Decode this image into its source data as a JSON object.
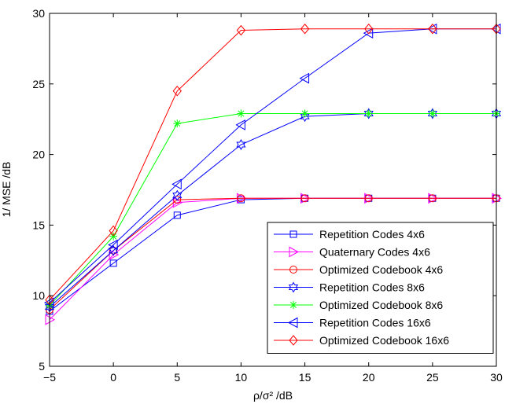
{
  "chart_data": {
    "type": "line",
    "xlabel": "ρ/σ² /dB",
    "ylabel": "1/ MSE /dB",
    "xlim": [
      -5,
      30
    ],
    "ylim": [
      5,
      30
    ],
    "xticks": [
      -5,
      0,
      5,
      10,
      15,
      20,
      25,
      30
    ],
    "yticks": [
      5,
      10,
      15,
      20,
      25,
      30
    ],
    "grid": false,
    "legend_position": "bottom-right",
    "x": [
      -5,
      0,
      5,
      10,
      15,
      20,
      25,
      30
    ],
    "series": [
      {
        "name": "Repetition Codes 4x6",
        "color": "#0000ff",
        "marker": "square",
        "values": [
          8.9,
          12.3,
          15.7,
          16.8,
          16.9,
          16.9,
          16.9,
          16.9
        ]
      },
      {
        "name": "Quaternary Codes 4x6",
        "color": "#ff00ff",
        "marker": "triangle-right",
        "values": [
          8.3,
          12.9,
          16.6,
          16.9,
          16.9,
          16.9,
          16.9,
          16.9
        ]
      },
      {
        "name": "Optimized Codebook 4x6",
        "color": "#ff0000",
        "marker": "circle",
        "values": [
          9.0,
          13.2,
          16.8,
          16.9,
          16.9,
          16.9,
          16.9,
          16.9
        ]
      },
      {
        "name": "Repetition Codes 8x6",
        "color": "#0000ff",
        "marker": "hexagram",
        "values": [
          9.2,
          13.2,
          17.1,
          20.7,
          22.7,
          22.9,
          22.9,
          22.9
        ]
      },
      {
        "name": "Optimized Codebook 8x6",
        "color": "#00ff00",
        "marker": "asterisk",
        "values": [
          9.3,
          14.2,
          22.2,
          22.9,
          22.9,
          22.9,
          22.9,
          22.9
        ]
      },
      {
        "name": "Repetition Codes 16x6",
        "color": "#0000ff",
        "marker": "triangle-left",
        "values": [
          9.5,
          13.6,
          17.9,
          22.1,
          25.4,
          28.6,
          28.9,
          28.9
        ]
      },
      {
        "name": "Optimized Codebook 16x6",
        "color": "#ff0000",
        "marker": "diamond",
        "values": [
          9.7,
          14.6,
          24.5,
          28.8,
          28.9,
          28.9,
          28.9,
          28.9
        ]
      }
    ]
  }
}
